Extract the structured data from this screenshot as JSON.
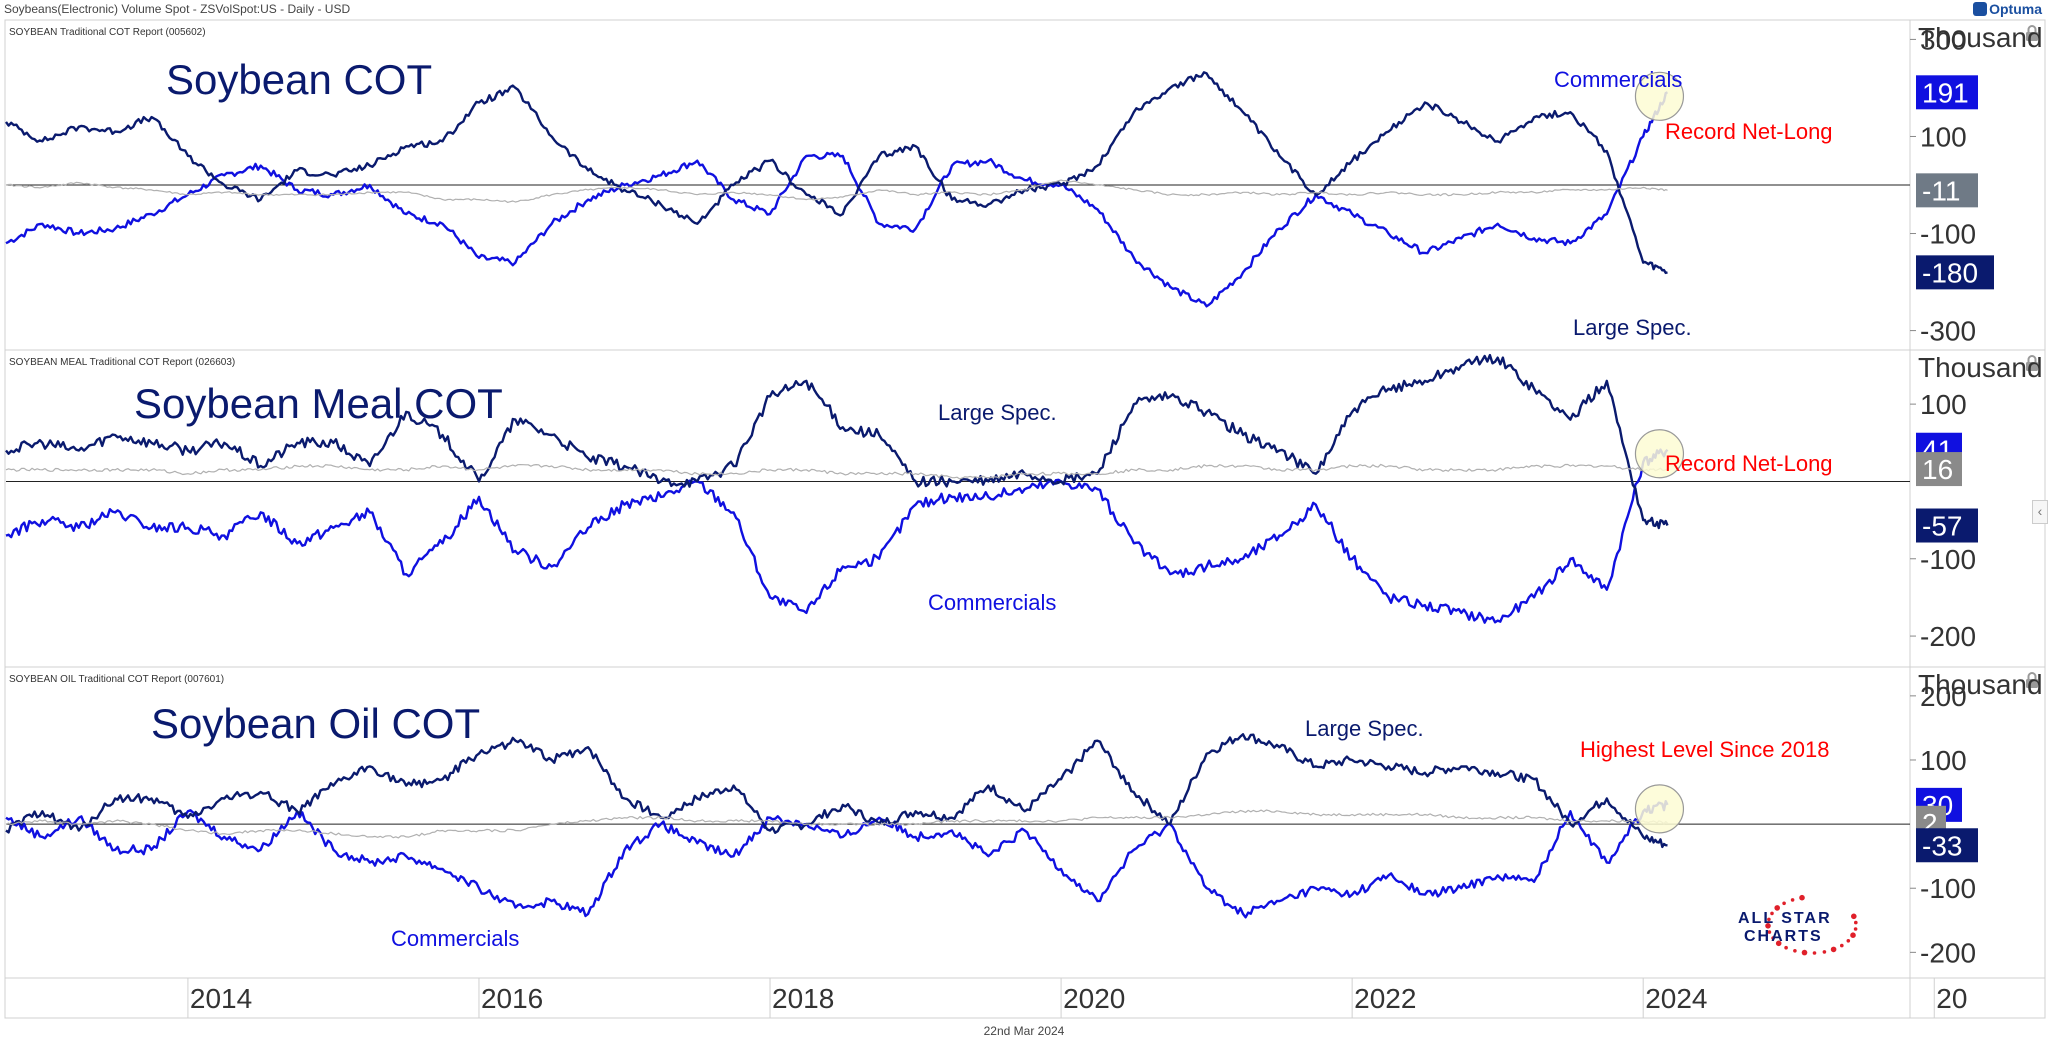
{
  "header": {
    "title": "Soybeans(Electronic) Volume Spot - ZSVolSpot:US - Daily - USD",
    "logo": "Optuma"
  },
  "footer": {
    "date": "22nd Mar 2024"
  },
  "colors": {
    "dark": "#0a1a6e",
    "blue": "#1010e0",
    "gray": "#b0b0b0",
    "red": "#ff0000",
    "highlight": "#fdfbd3"
  },
  "x_axis": {
    "ticks": [
      "2014",
      "2016",
      "2018",
      "2020",
      "2022",
      "2024",
      "20"
    ]
  },
  "brand": {
    "line1": "ALL STAR",
    "line2": "CHARTS"
  },
  "chart_data": [
    {
      "type": "line",
      "subtitle": "SOYBEAN Traditional COT Report (005602)",
      "title": "Soybean COT",
      "ylabel": "Thousand",
      "ylim": [
        -340,
        340
      ],
      "yticks": [
        "300",
        "100",
        "-100",
        "-300"
      ],
      "ytick_values": [
        300,
        100,
        -100,
        -300
      ],
      "x": [
        "2012-10",
        "2013-01",
        "2013-04",
        "2013-07",
        "2013-10",
        "2014-01",
        "2014-04",
        "2014-07",
        "2014-10",
        "2015-01",
        "2015-04",
        "2015-07",
        "2015-10",
        "2016-01",
        "2016-04",
        "2016-07",
        "2016-10",
        "2017-01",
        "2017-04",
        "2017-07",
        "2017-10",
        "2018-01",
        "2018-04",
        "2018-07",
        "2018-10",
        "2019-01",
        "2019-04",
        "2019-07",
        "2019-10",
        "2020-01",
        "2020-04",
        "2020-07",
        "2020-10",
        "2021-01",
        "2021-04",
        "2021-07",
        "2021-10",
        "2022-01",
        "2022-04",
        "2022-07",
        "2022-10",
        "2023-01",
        "2023-04",
        "2023-07",
        "2023-10",
        "2024-01",
        "2024-03"
      ],
      "series": [
        {
          "name": "Commercials",
          "values": [
            -120,
            -80,
            -100,
            -90,
            -60,
            -20,
            20,
            40,
            -10,
            -20,
            0,
            -60,
            -80,
            -150,
            -160,
            -80,
            -30,
            0,
            20,
            50,
            -30,
            -60,
            60,
            60,
            -80,
            -90,
            40,
            50,
            10,
            0,
            -50,
            -150,
            -210,
            -250,
            -180,
            -90,
            -20,
            -60,
            -100,
            -140,
            -110,
            -80,
            -110,
            -120,
            -60,
            100,
            191
          ]
        },
        {
          "name": "Large Spec.",
          "values": [
            130,
            90,
            120,
            110,
            140,
            60,
            0,
            -30,
            30,
            20,
            40,
            80,
            90,
            170,
            200,
            100,
            30,
            -10,
            -40,
            -80,
            0,
            50,
            -20,
            -60,
            60,
            80,
            -30,
            -40,
            -10,
            0,
            40,
            150,
            200,
            230,
            150,
            60,
            -20,
            50,
            110,
            170,
            130,
            90,
            140,
            150,
            70,
            -160,
            -180
          ]
        },
        {
          "name": "",
          "values": [
            0,
            -5,
            5,
            -5,
            -10,
            -20,
            -15,
            -20,
            -20,
            -20,
            -15,
            -15,
            -30,
            -30,
            -35,
            -20,
            -10,
            -5,
            -10,
            -20,
            -15,
            -20,
            -30,
            -25,
            -10,
            -20,
            -15,
            -20,
            -10,
            10,
            0,
            -10,
            -20,
            -20,
            -15,
            -20,
            -15,
            -20,
            -15,
            -20,
            -20,
            -15,
            -15,
            -10,
            -10,
            -5,
            -11
          ]
        }
      ],
      "last_values": [
        "191",
        "-11",
        "-180"
      ],
      "annotations": [
        "Commercials",
        "Large Spec.",
        "Record Net-Long"
      ]
    },
    {
      "type": "line",
      "subtitle": "SOYBEAN MEAL Traditional COT Report (026603)",
      "title": "Soybean Meal COT",
      "ylabel": "Thousand",
      "ylim": [
        -240,
        170
      ],
      "yticks": [
        "100",
        "-100",
        "-200"
      ],
      "ytick_values": [
        100,
        -100,
        -200
      ],
      "x": [
        "2012-10",
        "2013-01",
        "2013-04",
        "2013-07",
        "2013-10",
        "2014-01",
        "2014-04",
        "2014-07",
        "2014-10",
        "2015-01",
        "2015-04",
        "2015-07",
        "2015-10",
        "2016-01",
        "2016-04",
        "2016-07",
        "2016-10",
        "2017-01",
        "2017-04",
        "2017-07",
        "2017-10",
        "2018-01",
        "2018-04",
        "2018-07",
        "2018-10",
        "2019-01",
        "2019-04",
        "2019-07",
        "2019-10",
        "2020-01",
        "2020-04",
        "2020-07",
        "2020-10",
        "2021-01",
        "2021-04",
        "2021-07",
        "2021-10",
        "2022-01",
        "2022-04",
        "2022-07",
        "2022-10",
        "2023-01",
        "2023-04",
        "2023-07",
        "2023-10",
        "2024-01",
        "2024-03"
      ],
      "series": [
        {
          "name": "Commercials",
          "values": [
            -70,
            -50,
            -60,
            -40,
            -60,
            -60,
            -70,
            -40,
            -80,
            -60,
            -40,
            -120,
            -80,
            -20,
            -90,
            -110,
            -60,
            -30,
            -20,
            0,
            -40,
            -150,
            -170,
            -110,
            -100,
            -30,
            -20,
            -20,
            -10,
            0,
            -10,
            -80,
            -120,
            -110,
            -100,
            -70,
            -30,
            -100,
            -150,
            -160,
            -170,
            -180,
            -150,
            -100,
            -140,
            25,
            41
          ]
        },
        {
          "name": "Large Spec.",
          "values": [
            40,
            50,
            40,
            60,
            50,
            40,
            50,
            20,
            50,
            50,
            20,
            90,
            60,
            0,
            80,
            60,
            30,
            20,
            0,
            0,
            20,
            110,
            130,
            70,
            60,
            0,
            0,
            0,
            10,
            0,
            10,
            100,
            110,
            90,
            60,
            40,
            10,
            90,
            120,
            130,
            150,
            160,
            120,
            80,
            130,
            -50,
            -57
          ]
        },
        {
          "name": "",
          "values": [
            15,
            15,
            15,
            15,
            15,
            10,
            15,
            15,
            20,
            20,
            15,
            15,
            20,
            15,
            20,
            20,
            15,
            15,
            15,
            10,
            10,
            15,
            15,
            10,
            10,
            10,
            5,
            5,
            10,
            10,
            10,
            15,
            15,
            20,
            20,
            15,
            15,
            20,
            20,
            15,
            15,
            15,
            20,
            20,
            20,
            15,
            16
          ]
        }
      ],
      "last_values": [
        "41",
        "16",
        "-57"
      ],
      "annotations": [
        "Large Spec.",
        "Commercials",
        "Record Net-Long"
      ]
    },
    {
      "type": "line",
      "subtitle": "SOYBEAN OIL Traditional COT Report (007601)",
      "title": "Soybean Oil COT",
      "ylabel": "Thousand",
      "ylim": [
        -240,
        245
      ],
      "yticks": [
        "200",
        "100",
        "-100",
        "-200"
      ],
      "ytick_values": [
        200,
        100,
        -100,
        -200
      ],
      "x": [
        "2012-10",
        "2013-01",
        "2013-04",
        "2013-07",
        "2013-10",
        "2014-01",
        "2014-04",
        "2014-07",
        "2014-10",
        "2015-01",
        "2015-04",
        "2015-07",
        "2015-10",
        "2016-01",
        "2016-04",
        "2016-07",
        "2016-10",
        "2017-01",
        "2017-04",
        "2017-07",
        "2017-10",
        "2018-01",
        "2018-04",
        "2018-07",
        "2018-10",
        "2019-01",
        "2019-04",
        "2019-07",
        "2019-10",
        "2020-01",
        "2020-04",
        "2020-07",
        "2020-10",
        "2021-01",
        "2021-04",
        "2021-07",
        "2021-10",
        "2022-01",
        "2022-04",
        "2022-07",
        "2022-10",
        "2023-01",
        "2023-04",
        "2023-07",
        "2023-10",
        "2024-01",
        "2024-03"
      ],
      "series": [
        {
          "name": "Commercials",
          "values": [
            10,
            -20,
            10,
            -40,
            -40,
            20,
            -20,
            -40,
            20,
            -40,
            -60,
            -50,
            -70,
            -100,
            -130,
            -120,
            -140,
            -40,
            0,
            -30,
            -50,
            10,
            0,
            -20,
            10,
            -20,
            -10,
            -50,
            -10,
            -70,
            -120,
            -40,
            0,
            -100,
            -140,
            -120,
            -100,
            -110,
            -80,
            -110,
            -100,
            -80,
            -90,
            20,
            -60,
            20,
            30
          ]
        },
        {
          "name": "Large Spec.",
          "values": [
            -10,
            20,
            -10,
            40,
            40,
            10,
            40,
            50,
            20,
            60,
            90,
            60,
            70,
            110,
            130,
            100,
            120,
            40,
            10,
            40,
            60,
            -10,
            0,
            30,
            0,
            20,
            10,
            60,
            20,
            70,
            130,
            50,
            0,
            110,
            140,
            120,
            90,
            100,
            90,
            80,
            90,
            80,
            70,
            0,
            40,
            -20,
            -33
          ]
        },
        {
          "name": "",
          "values": [
            0,
            5,
            0,
            5,
            0,
            -10,
            -15,
            -10,
            -10,
            -15,
            -20,
            -20,
            -10,
            -10,
            -10,
            0,
            5,
            10,
            10,
            5,
            5,
            5,
            0,
            0,
            0,
            0,
            5,
            5,
            5,
            5,
            10,
            10,
            10,
            15,
            20,
            20,
            15,
            15,
            15,
            15,
            10,
            10,
            10,
            5,
            5,
            5,
            2
          ]
        }
      ],
      "last_values": [
        "30",
        "2",
        "-33"
      ],
      "annotations": [
        "Large Spec.",
        "Commercials",
        "Highest Level Since 2018"
      ]
    }
  ]
}
